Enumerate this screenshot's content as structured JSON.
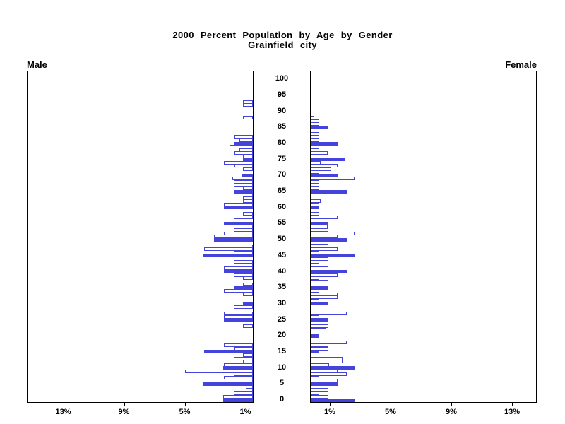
{
  "title": {
    "line1": "2000 Percent Population by Age by Gender",
    "line2": "Grainfield city"
  },
  "panel_labels": {
    "left": "Male",
    "right": "Female"
  },
  "colors": {
    "bar_fill": "#4444dd",
    "bar_outline": "#4444dd",
    "axis": "#000000",
    "background": "#ffffff"
  },
  "chart_data": {
    "type": "bar",
    "subtype": "population-pyramid",
    "title": "2000 Percent Population by Age by Gender",
    "subtitle": "Grainfield city",
    "unit": "percent of population",
    "age_axis": {
      "min": 0,
      "max": 100,
      "tick_step": 5,
      "label_position": "center-column"
    },
    "x_axis": {
      "tick_values": [
        1,
        5,
        9,
        13
      ],
      "tick_labels": [
        "1%",
        "5%",
        "9%",
        "13%"
      ],
      "max_shown": 15
    },
    "legend_note": "bars at ages divisible by 5 are solid filled; other ages are outlined",
    "series": [
      {
        "name": "Male",
        "side": "left",
        "ages": "0-100 single years",
        "values": [
          1.95,
          1.95,
          1.25,
          1.25,
          0.45,
          3.25,
          1.25,
          1.9,
          1.25,
          4.45,
          1.95,
          1.9,
          0.65,
          1.25,
          0.65,
          3.2,
          1.2,
          1.9,
          0,
          0,
          0,
          0,
          0,
          0.65,
          0,
          1.9,
          1.9,
          1.9,
          0,
          1.25,
          0.65,
          0,
          0,
          0.65,
          1.9,
          1.25,
          0.65,
          0,
          0.65,
          1.25,
          1.9,
          1.9,
          1.25,
          1.25,
          0,
          3.25,
          1.25,
          3.2,
          1.25,
          0,
          2.55,
          2.55,
          1.9,
          1.25,
          1.25,
          1.9,
          0,
          1.25,
          0.65,
          0,
          1.9,
          1.9,
          0.65,
          0.65,
          1.25,
          1.25,
          0.65,
          1.25,
          1.25,
          1.35,
          0.75,
          0,
          0.65,
          1.2,
          1.9,
          0.65,
          0.65,
          1.2,
          0.9,
          1.55,
          1.2,
          0.9,
          1.2,
          0,
          0,
          0,
          0,
          0,
          0.65,
          0,
          0,
          0,
          0.65,
          0.65,
          0,
          0,
          0,
          0,
          0,
          0,
          0
        ]
      },
      {
        "name": "Female",
        "side": "right",
        "ages": "0-100 single years",
        "values": [
          2.9,
          1.15,
          0.55,
          1.15,
          1.15,
          1.75,
          1.75,
          0.55,
          2.35,
          1.75,
          2.9,
          1.2,
          2.1,
          2.1,
          0,
          0.55,
          1.15,
          1.15,
          2.35,
          0,
          0.55,
          1.15,
          1.0,
          1.15,
          0.55,
          1.15,
          0.55,
          2.35,
          0,
          0,
          1.15,
          0.55,
          1.75,
          1.75,
          0.55,
          1.15,
          0,
          1.15,
          0.55,
          1.75,
          2.35,
          0,
          1.15,
          0.55,
          1.15,
          2.95,
          0.55,
          1.75,
          1.0,
          1.15,
          2.35,
          1.75,
          2.9,
          1.15,
          1.1,
          1.1,
          0,
          1.75,
          0.55,
          0,
          0.55,
          0.55,
          0.65,
          0,
          1.15,
          2.35,
          0.55,
          0.55,
          0.55,
          2.9,
          1.75,
          0.55,
          1.35,
          1.75,
          0.65,
          2.3,
          0.55,
          1.1,
          0.55,
          1.15,
          1.75,
          0.55,
          0.55,
          0.55,
          0,
          1.15,
          0.55,
          0.55,
          0.25,
          0,
          0,
          0,
          0,
          0,
          0,
          0,
          0,
          0,
          0,
          0,
          0
        ]
      }
    ]
  }
}
